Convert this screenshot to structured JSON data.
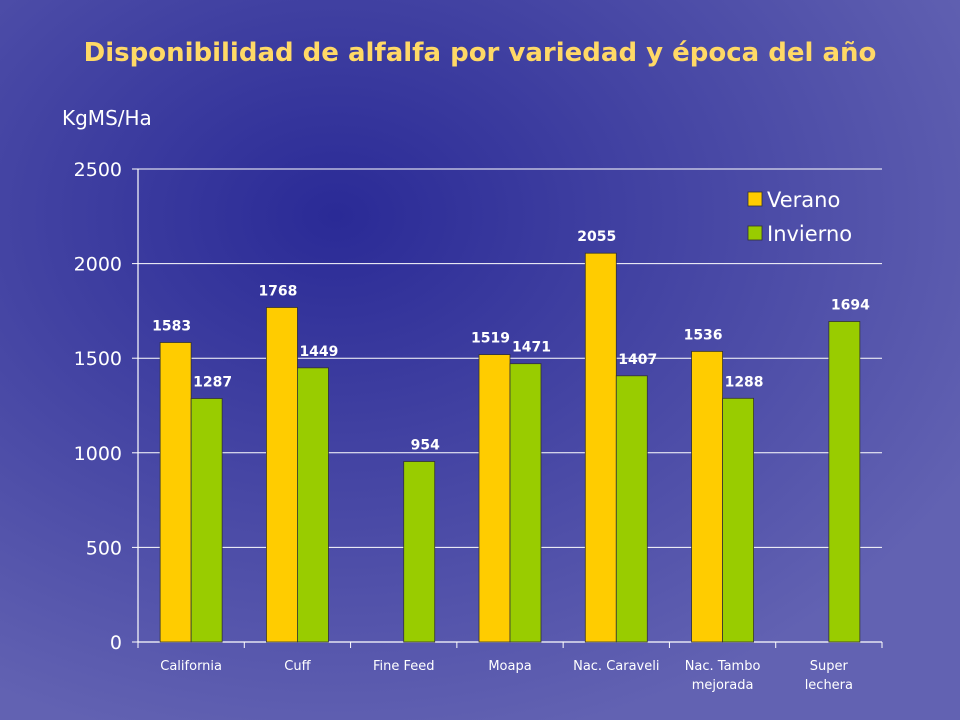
{
  "slide": {
    "title": "Disponibilidad de alfalfa por variedad y época del año"
  },
  "chart_data": {
    "type": "bar",
    "title": "Disponibilidad de alfalfa por variedad y época del año",
    "ylabel": "KgMS/Ha",
    "xlabel": "",
    "ylim": [
      0,
      2500
    ],
    "yticks": [
      0,
      500,
      1000,
      1500,
      2000,
      2500
    ],
    "grid": true,
    "legend_position": "top-right",
    "categories": [
      [
        "California"
      ],
      [
        "Cuff"
      ],
      [
        "Fine Feed"
      ],
      [
        "Moapa"
      ],
      [
        "Nac. Caraveli"
      ],
      [
        "Nac. Tambo",
        "mejorada"
      ],
      [
        "Super",
        "lechera"
      ]
    ],
    "series": [
      {
        "name": "Verano",
        "color": "#ffcc00",
        "values": [
          1583,
          1768,
          null,
          1519,
          2055,
          1536,
          null
        ]
      },
      {
        "name": "Invierno",
        "color": "#99cc00",
        "values": [
          1287,
          1449,
          954,
          1471,
          1407,
          1288,
          1694
        ]
      }
    ]
  }
}
